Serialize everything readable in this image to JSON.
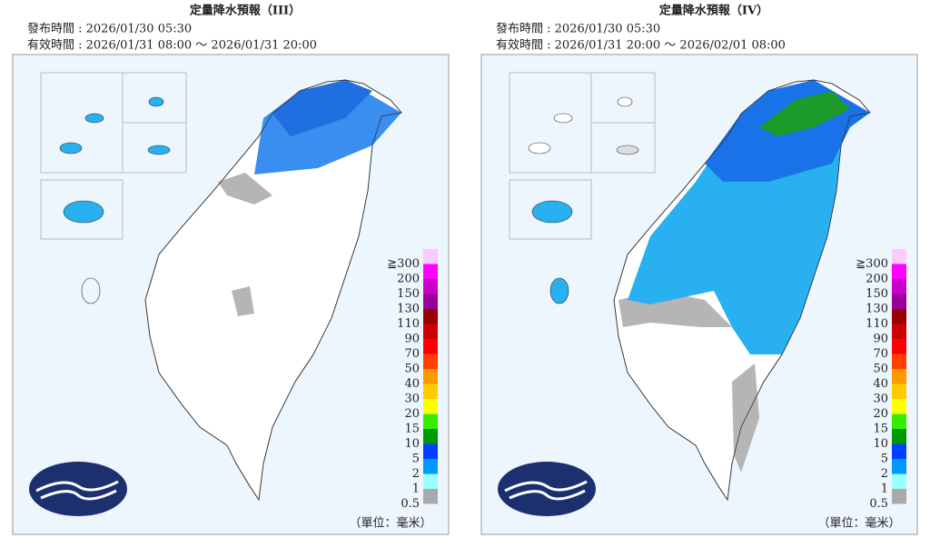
{
  "panels": [
    {
      "title": "定量降水預報（III）",
      "issued": "發布時間 : 2026/01/30 05:30",
      "valid": "有效時間 : 2026/01/31 08:00 ～ 2026/01/31 20:00",
      "unit": "（單位：毫米）"
    },
    {
      "title": "定量降水預報（IV）",
      "issued": "發布時間 : 2026/01/30 05:30",
      "valid": "有效時間 : 2026/01/31 20:00 ～ 2026/02/01 08:00",
      "unit": "（單位：毫米）"
    }
  ],
  "legend": {
    "labels": [
      "≧300",
      "200",
      "150",
      "130",
      "110",
      "90",
      "70",
      "50",
      "40",
      "30",
      "20",
      "15",
      "10",
      "5",
      "2",
      "1",
      "0.5"
    ],
    "colors": [
      "#fccafc",
      "#ff00ff",
      "#cc00cc",
      "#990099",
      "#990000",
      "#cc0000",
      "#ff0000",
      "#ff4000",
      "#ff9900",
      "#ffcc00",
      "#ffff00",
      "#33ee00",
      "#009900",
      "#0040ff",
      "#0099ff",
      "#99ffff",
      "#aaaaaa"
    ]
  }
}
